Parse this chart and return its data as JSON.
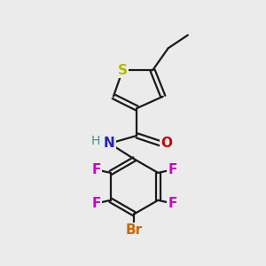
{
  "bg_color": "#ebebeb",
  "bond_color": "#1a1a1a",
  "S_color": "#b8b800",
  "N_color": "#2020cc",
  "O_color": "#cc0000",
  "F_color": "#cc00cc",
  "Br_color": "#cc6600",
  "H_color": "#409090",
  "bond_lw": 1.6,
  "font_size": 11,
  "fig_size": [
    3.0,
    3.0
  ],
  "dpi": 100,
  "xlim": [
    0,
    10
  ],
  "ylim": [
    0,
    10
  ]
}
